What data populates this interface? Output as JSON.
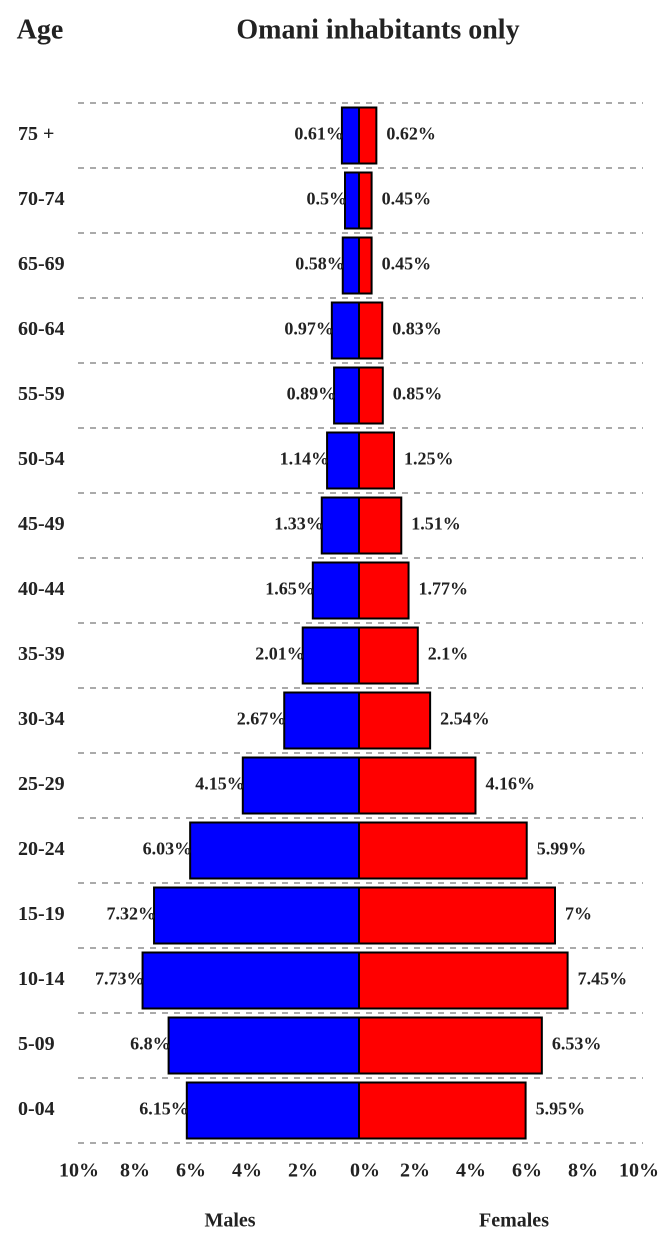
{
  "chart_data": {
    "type": "population_pyramid",
    "title": "Omani inhabitants only",
    "y_label": "Age",
    "categories": [
      "75 +",
      "70-74",
      "65-69",
      "60-64",
      "55-59",
      "50-54",
      "45-49",
      "40-44",
      "35-39",
      "30-34",
      "25-29",
      "20-24",
      "15-19",
      "10-14",
      "5-09",
      "0-04"
    ],
    "series": [
      {
        "name": "Males",
        "color": "#0000ff",
        "values": [
          0.61,
          0.5,
          0.58,
          0.97,
          0.89,
          1.14,
          1.33,
          1.65,
          2.01,
          2.67,
          4.15,
          6.03,
          7.32,
          7.73,
          6.8,
          6.15
        ],
        "value_labels": [
          "0.61%",
          "0.5%",
          "0.58%",
          "0.97%",
          "0.89%",
          "1.14%",
          "1.33%",
          "1.65%",
          "2.01%",
          "2.67%",
          "4.15%",
          "6.03%",
          "7.32%",
          "7.73%",
          "6.8%",
          "6.15%"
        ]
      },
      {
        "name": "Females",
        "color": "#ff0000",
        "values": [
          0.62,
          0.45,
          0.45,
          0.83,
          0.85,
          1.25,
          1.51,
          1.77,
          2.1,
          2.54,
          4.16,
          5.99,
          7,
          7.45,
          6.53,
          5.95
        ],
        "value_labels": [
          "0.62%",
          "0.45%",
          "0.45%",
          "0.83%",
          "0.85%",
          "1.25%",
          "1.51%",
          "1.77%",
          "2.1%",
          "2.54%",
          "4.16%",
          "5.99%",
          "7%",
          "7.45%",
          "6.53%",
          "5.95%"
        ]
      }
    ],
    "xlim": [
      0,
      10
    ],
    "male_xticks": [
      {
        "value": 10,
        "label": "10%"
      },
      {
        "value": 8,
        "label": "8%"
      },
      {
        "value": 6,
        "label": "6%"
      },
      {
        "value": 4,
        "label": "4%"
      },
      {
        "value": 2,
        "label": "2%"
      },
      {
        "value": 0,
        "label": "0%"
      }
    ],
    "female_xticks": [
      {
        "value": 2,
        "label": "2%"
      },
      {
        "value": 4,
        "label": "4%"
      },
      {
        "value": 6,
        "label": "6%"
      },
      {
        "value": 8,
        "label": "8%"
      },
      {
        "value": 10,
        "label": "10%"
      }
    ],
    "grid": true
  }
}
